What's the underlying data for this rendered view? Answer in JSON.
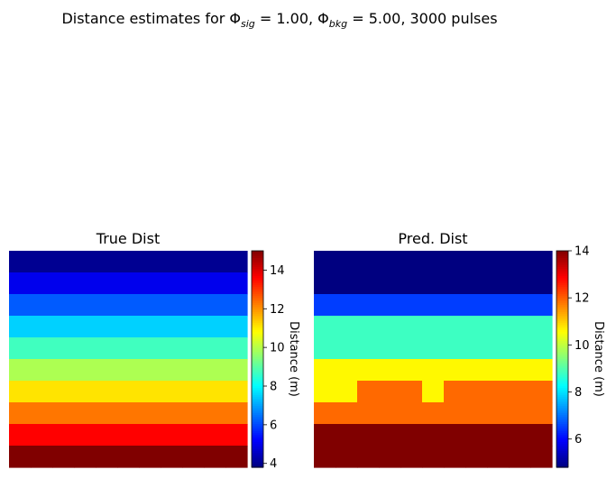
{
  "suptitle": {
    "prefix": "Distance estimates for ",
    "phi_sig_symbol": "Φ",
    "phi_sig_sub": "sig",
    "phi_sig_value": " = 1.00, ",
    "phi_bkg_symbol": "Φ",
    "phi_bkg_sub": "bkg",
    "phi_bkg_value": " = 5.00, 3000 pulses"
  },
  "chart_data": [
    {
      "type": "heatmap",
      "title": "True Dist",
      "colormap": "jet",
      "colorbar_label": "Distance (m)",
      "vmin": 3.8,
      "vmax": 15.0,
      "colorbar_ticks": [
        4,
        6,
        8,
        10,
        12,
        14
      ],
      "rows": 10,
      "cols": 11,
      "grid": [
        [
          4,
          4,
          4,
          4,
          4,
          4,
          4,
          4,
          4,
          4,
          4
        ],
        [
          5,
          5,
          5,
          5,
          5,
          5,
          5,
          5,
          5,
          5,
          5
        ],
        [
          6.2,
          6.2,
          6.2,
          6.2,
          6.2,
          6.2,
          6.2,
          6.2,
          6.2,
          6.2,
          6.2
        ],
        [
          7.5,
          7.5,
          7.5,
          7.5,
          7.5,
          7.5,
          7.5,
          7.5,
          7.5,
          7.5,
          7.5
        ],
        [
          8.7,
          8.7,
          8.7,
          8.7,
          8.7,
          8.7,
          8.7,
          8.7,
          8.7,
          8.7,
          8.7
        ],
        [
          9.9,
          9.9,
          9.9,
          9.9,
          9.9,
          9.9,
          9.9,
          9.9,
          9.9,
          9.9,
          9.9
        ],
        [
          11.1,
          11.1,
          11.1,
          11.1,
          11.1,
          11.1,
          11.1,
          11.1,
          11.1,
          11.1,
          11.1
        ],
        [
          12.3,
          12.3,
          12.3,
          12.3,
          12.3,
          12.3,
          12.3,
          12.3,
          12.3,
          12.3,
          12.3
        ],
        [
          13.6,
          13.6,
          13.6,
          13.6,
          13.6,
          13.6,
          13.6,
          13.6,
          13.6,
          13.6,
          13.6
        ],
        [
          15,
          15,
          15,
          15,
          15,
          15,
          15,
          15,
          15,
          15,
          15
        ]
      ]
    },
    {
      "type": "heatmap",
      "title": "Pred. Dist",
      "colormap": "jet",
      "colorbar_label": "Distance (m)",
      "vmin": 4.8,
      "vmax": 14.0,
      "colorbar_ticks": [
        6,
        8,
        10,
        12,
        14
      ],
      "rows": 10,
      "cols": 11,
      "grid": [
        [
          4.8,
          4.8,
          4.8,
          4.8,
          4.8,
          4.8,
          4.8,
          4.8,
          4.8,
          4.8,
          4.8
        ],
        [
          4.8,
          4.8,
          4.8,
          4.8,
          4.8,
          4.8,
          4.8,
          4.8,
          4.8,
          4.8,
          4.8
        ],
        [
          6.5,
          6.5,
          6.5,
          6.5,
          6.5,
          6.5,
          6.5,
          6.5,
          6.5,
          6.5,
          6.5
        ],
        [
          8.8,
          8.8,
          8.8,
          8.8,
          8.8,
          8.8,
          8.8,
          8.8,
          8.8,
          8.8,
          8.8
        ],
        [
          8.8,
          8.8,
          8.8,
          8.8,
          8.8,
          8.8,
          8.8,
          8.8,
          8.8,
          8.8,
          8.8
        ],
        [
          10.6,
          10.6,
          10.6,
          10.6,
          10.6,
          10.6,
          10.6,
          10.6,
          10.6,
          10.6,
          10.6
        ],
        [
          10.6,
          10.6,
          11.9,
          11.9,
          11.9,
          10.6,
          11.9,
          11.9,
          11.9,
          11.9,
          11.9
        ],
        [
          11.9,
          11.9,
          11.9,
          11.9,
          11.9,
          11.9,
          11.9,
          11.9,
          11.9,
          11.9,
          11.9
        ],
        [
          14,
          14,
          14,
          14,
          14,
          14,
          14,
          14,
          14,
          14,
          14
        ],
        [
          14,
          14,
          14,
          14,
          14,
          14,
          14,
          14,
          14,
          14,
          14
        ]
      ]
    }
  ]
}
